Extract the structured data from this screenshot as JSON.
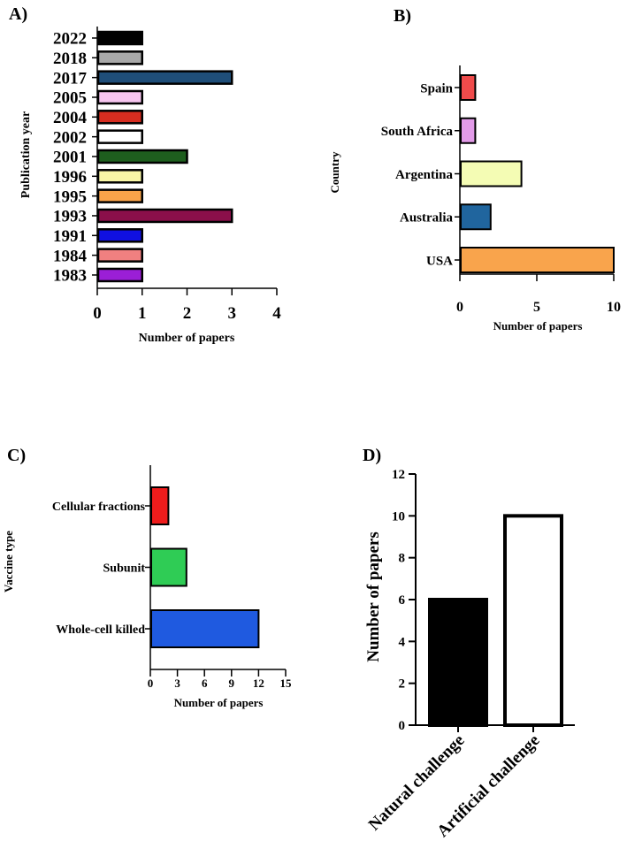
{
  "chart_data": [
    {
      "panel": "A)",
      "type": "bar",
      "orientation": "horizontal",
      "ylabel": "Publication year",
      "xlabel": "Number of papers",
      "xlim": [
        0,
        4
      ],
      "xticks": [
        0,
        1,
        2,
        3,
        4
      ],
      "categories": [
        "2022",
        "2018",
        "2017",
        "2005",
        "2004",
        "2002",
        "2001",
        "1996",
        "1995",
        "1993",
        "1991",
        "1984",
        "1983"
      ],
      "values": [
        1,
        1,
        3,
        1,
        1,
        1,
        2,
        1,
        1,
        3,
        1,
        1,
        1
      ],
      "colors": [
        "#000000",
        "#a8a8a8",
        "#1f4e79",
        "#f7c6f0",
        "#d62d20",
        "#ffffff",
        "#1e5e1e",
        "#f9f6a6",
        "#f9a34a",
        "#8b0f4a",
        "#1010e0",
        "#f08080",
        "#9b1fd6"
      ]
    },
    {
      "panel": "B)",
      "type": "bar",
      "orientation": "horizontal",
      "ylabel": "Country",
      "xlabel": "Number of papers",
      "xlim": [
        0,
        10
      ],
      "xticks": [
        0,
        5,
        10
      ],
      "categories": [
        "Spain",
        "South Africa",
        "Argentina",
        "Australia",
        "USA"
      ],
      "values": [
        1,
        1,
        4,
        2,
        10
      ],
      "colors": [
        "#ef4b4b",
        "#e29be8",
        "#f4fcb4",
        "#20659e",
        "#f9a44c"
      ]
    },
    {
      "panel": "C)",
      "type": "bar",
      "orientation": "horizontal",
      "ylabel": "Vaccine type",
      "xlabel": "Number of papers",
      "xlim": [
        0,
        15
      ],
      "xticks": [
        0,
        3,
        6,
        9,
        12,
        15
      ],
      "categories": [
        "Cellular fractions",
        "Subunit",
        "Whole-cell killed"
      ],
      "values": [
        2,
        4,
        12
      ],
      "colors": [
        "#ee1c1c",
        "#2fcc55",
        "#1f5ae0"
      ]
    },
    {
      "panel": "D)",
      "type": "bar",
      "orientation": "vertical",
      "ylabel": "Number of papers",
      "xlabel": "",
      "ylim": [
        0,
        12
      ],
      "yticks": [
        0,
        2,
        4,
        6,
        8,
        10,
        12
      ],
      "categories": [
        "Natural challenge",
        "Artificial challenge"
      ],
      "values": [
        6,
        10
      ],
      "colors": [
        "#000000",
        "#ffffff"
      ]
    }
  ]
}
